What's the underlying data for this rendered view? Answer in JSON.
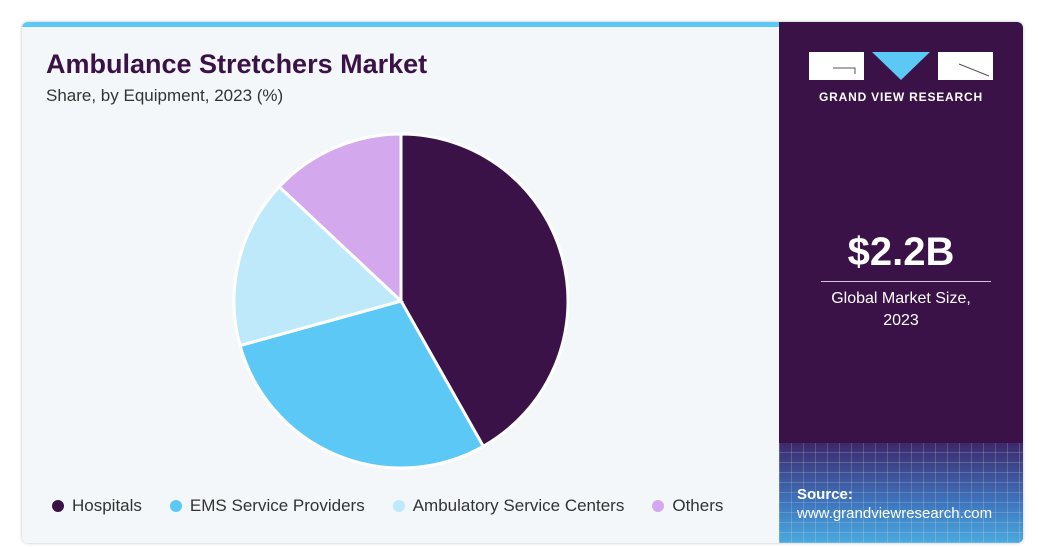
{
  "header": {
    "title": "Ambulance Stretchers Market",
    "subtitle": "Share, by Equipment, 2023 (%)"
  },
  "chart_data": {
    "type": "pie",
    "title": "Ambulance Stretchers Market",
    "subtitle": "Share, by Equipment, 2023 (%)",
    "categories": [
      "Hospitals",
      "EMS Service Providers",
      "Ambulatory Service Centers",
      "Others"
    ],
    "values": [
      41.8,
      28.9,
      16.3,
      13.0
    ],
    "colors": [
      "#3a1248",
      "#5bc8f5",
      "#bde9fb",
      "#d3a8ec"
    ],
    "legend": "bottom"
  },
  "sidebar": {
    "brand": "GRAND VIEW RESEARCH",
    "market_size": "$2.2B",
    "market_label_1": "Global Market Size,",
    "market_label_2": "2023",
    "source_label": "Source:",
    "source_url": "www.grandviewresearch.com"
  }
}
